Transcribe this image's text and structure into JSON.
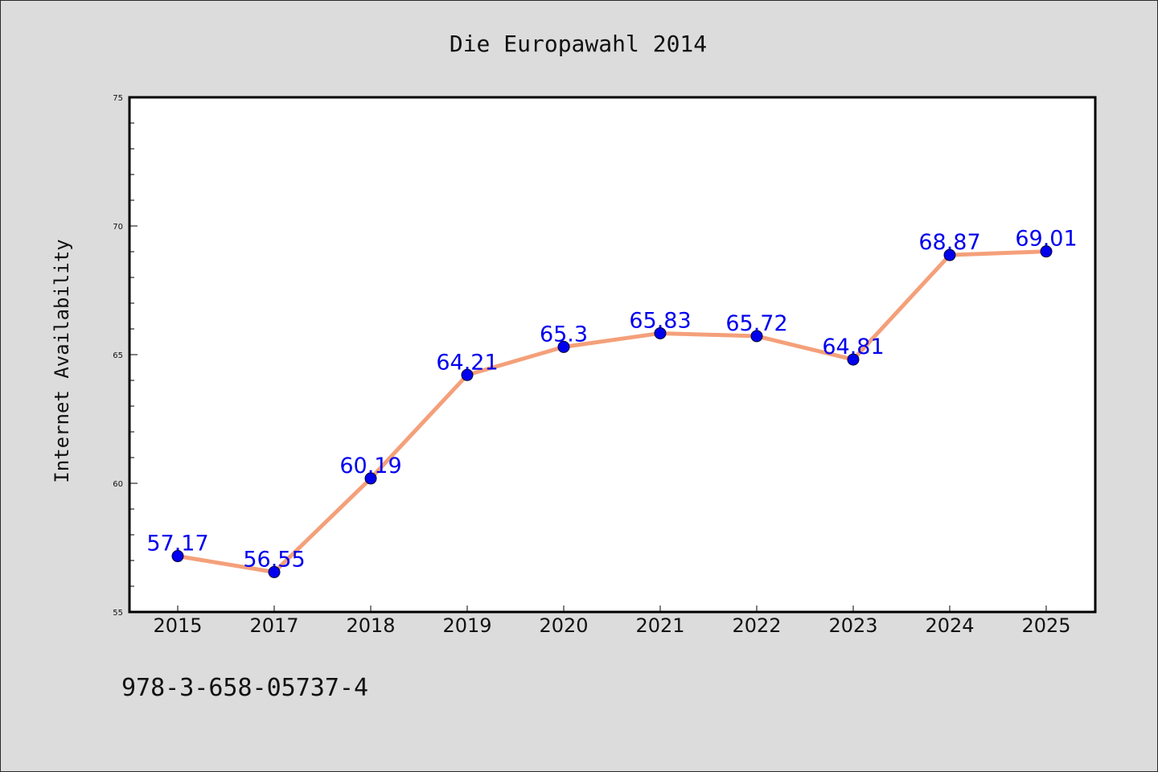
{
  "chart_data": {
    "type": "line",
    "title": "Die Europawahl 2014",
    "xlabel": "",
    "ylabel": "Internet Availability",
    "categories": [
      "2015",
      "2017",
      "2018",
      "2019",
      "2020",
      "2021",
      "2022",
      "2023",
      "2024",
      "2025"
    ],
    "series": [
      {
        "values": [
          57.17,
          56.55,
          60.19,
          64.21,
          65.3,
          65.83,
          65.72,
          64.81,
          68.87,
          69.01
        ],
        "data_labels": [
          "57.17",
          "56.55",
          "60.19",
          "64.21",
          "65.3",
          "65.83",
          "65.72",
          "64.81",
          "68.87",
          "69.01"
        ],
        "line_color": "#f4a07a",
        "marker_color": "#0000ee"
      }
    ],
    "ylim": [
      55,
      75
    ],
    "y_ticks": [
      "55",
      "60",
      "65",
      "70",
      "75"
    ],
    "grid": false,
    "label_color": "#0000ee"
  },
  "footer_text": "978-3-658-05737-4",
  "colors": {
    "background": "#dcdcdc",
    "plot_background": "#ffffff",
    "text": "#111111"
  }
}
